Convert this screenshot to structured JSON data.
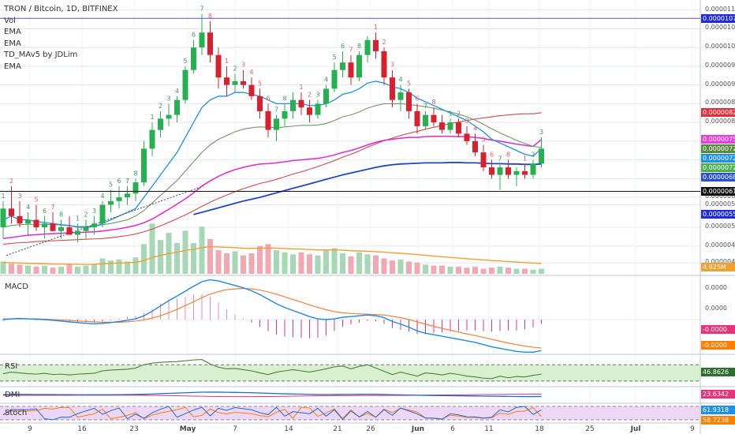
{
  "legend": {
    "title": "TRON / Bitcoin, 1D, BITFINEX",
    "items": [
      "Vol",
      "EMA",
      "EMA",
      "TD_MAv5 by JDLim",
      "EMA"
    ]
  },
  "panes": {
    "macd": "MACD",
    "rsi": "RSI",
    "dmi": "DMI",
    "stoch": "Stoch"
  },
  "price_axis": [
    "0.00001100",
    "0.00001050",
    "0.00001000",
    "0.00000950",
    "0.00000900",
    "0.00000850",
    "0.00000800",
    "0.00000750",
    "0.00000700",
    "0.00000650",
    "0.00000600",
    "0.00000580",
    "0.00000520",
    "0.00000470",
    "0.00000425"
  ],
  "macd_axis": [
    "0.0000",
    "0.0000"
  ],
  "price_tags": [
    {
      "label": "0.00001078",
      "color": "#1f2bd8"
    },
    {
      "label": "0.00000826",
      "color": "#e0303a"
    },
    {
      "label": "0.00000754",
      "color": "#e63fd5"
    },
    {
      "label": "0.00000729",
      "color": "#5a8a3c"
    },
    {
      "label": "0.00000728",
      "color": "#1e90e8"
    },
    {
      "label": "0.00000725",
      "color": "#4caf50"
    },
    {
      "label": "0.00000689",
      "color": "#2a52c8"
    },
    {
      "label": "0.00000616",
      "color": "#111111"
    },
    {
      "label": "0.00000554",
      "color": "#1f2bd8"
    },
    {
      "label": "4.925M",
      "color": "#f0a030"
    }
  ],
  "indicator_tags": [
    {
      "label": "-0.0000",
      "color": "#e8337a"
    },
    {
      "label": "-0.0000",
      "color": "#ff7f00"
    },
    {
      "label": "46.8626",
      "color": "#2e6e2e"
    },
    {
      "label": "23.6342",
      "color": "#e8337a"
    },
    {
      "label": "61.9318",
      "color": "#1e90e8"
    },
    {
      "label": "58.7238",
      "color": "#ff7f00"
    }
  ],
  "x_axis": [
    "9",
    "16",
    "23",
    "May",
    "7",
    "14",
    "21",
    "26",
    "Jun",
    "6",
    "11",
    "18",
    "25",
    "Jul",
    "9"
  ],
  "chart_data": {
    "type": "candlestick",
    "title": "TRON / Bitcoin, 1D, BITFINEX",
    "ylim": [
      4e-06,
      1.11e-05
    ],
    "candles": [
      [
        5.2,
        5.9,
        4.9,
        5.7
      ],
      [
        5.7,
        6.3,
        5.3,
        5.5
      ],
      [
        5.5,
        5.9,
        5.2,
        5.3
      ],
      [
        5.3,
        5.6,
        5.0,
        5.4
      ],
      [
        5.4,
        5.8,
        5.1,
        5.2
      ],
      [
        5.2,
        5.5,
        4.9,
        5.3
      ],
      [
        5.3,
        5.6,
        5.1,
        5.1
      ],
      [
        5.1,
        5.4,
        4.9,
        5.2
      ],
      [
        5.2,
        5.5,
        5.0,
        5.0
      ],
      [
        5.0,
        5.3,
        4.8,
        5.1
      ],
      [
        5.1,
        5.4,
        4.9,
        5.2
      ],
      [
        5.2,
        5.5,
        5.0,
        5.3
      ],
      [
        5.3,
        5.9,
        5.2,
        5.8
      ],
      [
        5.8,
        6.2,
        5.6,
        5.9
      ],
      [
        5.9,
        6.3,
        5.7,
        6.0
      ],
      [
        6.0,
        6.3,
        5.8,
        6.1
      ],
      [
        6.1,
        6.5,
        5.9,
        6.4
      ],
      [
        6.4,
        7.5,
        6.3,
        7.3
      ],
      [
        7.3,
        8.0,
        7.1,
        7.8
      ],
      [
        7.8,
        8.3,
        7.6,
        8.1
      ],
      [
        8.1,
        8.5,
        7.9,
        8.2
      ],
      [
        8.2,
        8.7,
        8.0,
        8.6
      ],
      [
        8.6,
        9.5,
        8.5,
        9.4
      ],
      [
        9.4,
        10.2,
        9.3,
        10.0
      ],
      [
        10.0,
        10.9,
        9.8,
        10.4
      ],
      [
        10.4,
        10.7,
        9.6,
        9.8
      ],
      [
        9.8,
        10.0,
        8.9,
        9.2
      ],
      [
        9.2,
        9.5,
        8.7,
        9.0
      ],
      [
        9.0,
        9.3,
        8.8,
        9.1
      ],
      [
        9.1,
        9.4,
        8.9,
        9.0
      ],
      [
        9.0,
        9.2,
        8.6,
        8.7
      ],
      [
        8.7,
        8.9,
        8.1,
        8.3
      ],
      [
        8.3,
        8.5,
        7.6,
        7.8
      ],
      [
        7.8,
        8.2,
        7.5,
        8.1
      ],
      [
        8.1,
        8.5,
        7.9,
        8.3
      ],
      [
        8.3,
        8.8,
        8.1,
        8.6
      ],
      [
        8.6,
        8.8,
        8.2,
        8.4
      ],
      [
        8.4,
        8.6,
        8.0,
        8.2
      ],
      [
        8.2,
        8.6,
        8.1,
        8.5
      ],
      [
        8.5,
        9.0,
        8.4,
        8.9
      ],
      [
        8.9,
        9.6,
        8.8,
        9.4
      ],
      [
        9.4,
        9.9,
        9.2,
        9.6
      ],
      [
        9.6,
        9.8,
        9.0,
        9.2
      ],
      [
        9.2,
        9.9,
        9.1,
        9.8
      ],
      [
        9.8,
        10.3,
        9.6,
        10.2
      ],
      [
        10.2,
        10.4,
        9.7,
        9.9
      ],
      [
        9.9,
        10.0,
        9.0,
        9.2
      ],
      [
        9.2,
        9.4,
        8.4,
        8.6
      ],
      [
        8.6,
        9.0,
        8.3,
        8.8
      ],
      [
        8.8,
        8.9,
        8.1,
        8.3
      ],
      [
        8.3,
        8.5,
        7.7,
        7.9
      ],
      [
        7.9,
        8.3,
        7.8,
        8.2
      ],
      [
        8.2,
        8.4,
        7.9,
        8.0
      ],
      [
        8.0,
        8.2,
        7.7,
        7.8
      ],
      [
        7.8,
        8.1,
        7.7,
        8.0
      ],
      [
        8.0,
        8.1,
        7.6,
        7.7
      ],
      [
        7.7,
        7.9,
        7.4,
        7.5
      ],
      [
        7.5,
        7.7,
        7.1,
        7.2
      ],
      [
        7.2,
        7.4,
        6.7,
        6.8
      ],
      [
        6.8,
        7.0,
        6.5,
        6.6
      ],
      [
        6.6,
        6.9,
        6.2,
        6.8
      ],
      [
        6.8,
        7.0,
        6.5,
        6.6
      ],
      [
        6.6,
        6.8,
        6.3,
        6.7
      ],
      [
        6.7,
        6.9,
        6.5,
        6.6
      ],
      [
        6.6,
        7.0,
        6.5,
        6.9
      ],
      [
        6.9,
        7.6,
        6.8,
        7.3
      ]
    ],
    "volume": [
      1.2,
      1.0,
      0.9,
      0.8,
      0.7,
      0.8,
      0.6,
      0.7,
      0.9,
      0.7,
      0.8,
      0.9,
      1.5,
      1.3,
      1.4,
      1.2,
      1.6,
      2.9,
      4.9,
      3.3,
      4.0,
      3.0,
      4.2,
      3.0,
      4.6,
      3.4,
      2.3,
      2.0,
      2.2,
      1.8,
      2.0,
      2.7,
      2.9,
      2.3,
      2.1,
      1.9,
      2.1,
      1.9,
      1.8,
      2.3,
      2.5,
      2.0,
      1.7,
      2.1,
      1.9,
      1.8,
      1.5,
      1.3,
      1.4,
      1.2,
      1.1,
      0.9,
      0.8,
      0.8,
      0.7,
      0.7,
      0.6,
      0.7,
      0.5,
      0.6,
      0.7,
      0.6,
      0.5,
      0.5,
      0.4,
      0.5
    ],
    "ema_short": [
      5.4,
      5.5,
      5.4,
      5.4,
      5.35,
      5.33,
      5.3,
      5.27,
      5.25,
      5.2,
      5.2,
      5.22,
      5.3,
      5.4,
      5.5,
      5.6,
      5.7,
      6.0,
      6.3,
      6.6,
      6.9,
      7.2,
      7.6,
      8.0,
      8.4,
      8.6,
      8.7,
      8.7,
      8.8,
      8.8,
      8.75,
      8.7,
      8.6,
      8.5,
      8.5,
      8.5,
      8.5,
      8.45,
      8.45,
      8.5,
      8.6,
      8.75,
      8.8,
      8.9,
      9.05,
      9.1,
      9.05,
      8.95,
      8.9,
      8.8,
      8.65,
      8.55,
      8.45,
      8.35,
      8.25,
      8.15,
      8.05,
      7.9,
      7.75,
      7.55,
      7.45,
      7.35,
      7.25,
      7.15,
      7.1,
      7.3
    ],
    "ema_mid": [
      5.2,
      5.25,
      5.27,
      5.28,
      5.28,
      5.28,
      5.27,
      5.26,
      5.24,
      5.22,
      5.22,
      5.23,
      5.27,
      5.3,
      5.35,
      5.4,
      5.5,
      5.65,
      5.85,
      6.05,
      6.25,
      6.45,
      6.7,
      6.95,
      7.2,
      7.4,
      7.55,
      7.65,
      7.75,
      7.82,
      7.86,
      7.88,
      7.87,
      7.86,
      7.88,
      7.9,
      7.92,
      7.92,
      7.93,
      7.97,
      8.05,
      8.15,
      8.2,
      8.28,
      8.38,
      8.45,
      8.5,
      8.5,
      8.5,
      8.48,
      8.45,
      8.42,
      8.38,
      8.33,
      8.28,
      8.22,
      8.15,
      8.06,
      7.95,
      7.83,
      7.72,
      7.62,
      7.52,
      7.44,
      7.36,
      7.33
    ],
    "ema_magenta": [
      4.9,
      4.93,
      4.96,
      4.99,
      5.0,
      5.02,
      5.03,
      5.04,
      5.05,
      5.06,
      5.07,
      5.08,
      5.1,
      5.13,
      5.16,
      5.2,
      5.25,
      5.32,
      5.42,
      5.55,
      5.68,
      5.82,
      5.96,
      6.12,
      6.3,
      6.44,
      6.56,
      6.66,
      6.74,
      6.8,
      6.85,
      6.89,
      6.9,
      6.92,
      6.95,
      6.98,
      7.0,
      7.02,
      7.04,
      7.08,
      7.13,
      7.2,
      7.25,
      7.32,
      7.4,
      7.47,
      7.52,
      7.55,
      7.58,
      7.6,
      7.6,
      7.62,
      7.63,
      7.63,
      7.63,
      7.62,
      7.62,
      7.6,
      7.57,
      7.53,
      7.5,
      7.46,
      7.42,
      7.39,
      7.36,
      7.54
    ],
    "ema_red": [
      4.75,
      4.77,
      4.79,
      4.8,
      4.82,
      4.83,
      4.84,
      4.85,
      4.86,
      4.87,
      4.88,
      4.89,
      4.9,
      4.92,
      4.95,
      4.98,
      5.02,
      5.08,
      5.15,
      5.24,
      5.33,
      5.43,
      5.53,
      5.64,
      5.76,
      5.87,
      5.97,
      6.06,
      6.15,
      6.23,
      6.3,
      6.37,
      6.42,
      6.48,
      6.55,
      6.62,
      6.68,
      6.75,
      6.82,
      6.9,
      6.98,
      7.07,
      7.15,
      7.24,
      7.34,
      7.43,
      7.51,
      7.58,
      7.65,
      7.71,
      7.76,
      7.82,
      7.87,
      7.92,
      7.97,
      8.01,
      8.05,
      8.09,
      8.12,
      8.15,
      8.18,
      8.2,
      8.22,
      8.23,
      8.23,
      8.26
    ],
    "ema_blue": [
      null,
      null,
      null,
      null,
      null,
      null,
      null,
      null,
      null,
      null,
      null,
      null,
      null,
      null,
      null,
      null,
      null,
      null,
      null,
      null,
      null,
      null,
      null,
      5.54,
      5.6,
      5.66,
      5.72,
      5.78,
      5.84,
      5.9,
      5.95,
      6.0,
      6.06,
      6.12,
      6.18,
      6.24,
      6.3,
      6.36,
      6.42,
      6.48,
      6.54,
      6.6,
      6.65,
      6.7,
      6.75,
      6.8,
      6.84,
      6.87,
      6.89,
      6.9,
      6.91,
      6.92,
      6.92,
      6.92,
      6.93,
      6.93,
      6.92,
      6.92,
      6.91,
      6.9,
      6.9,
      6.89,
      6.89,
      6.88,
      6.88,
      6.89
    ],
    "ema_orange_vol": [
      1.1,
      1.08,
      1.05,
      1.02,
      1.0,
      0.98,
      0.96,
      0.95,
      0.94,
      0.93,
      0.92,
      0.93,
      0.98,
      1.02,
      1.05,
      1.08,
      1.12,
      1.3,
      1.6,
      1.78,
      1.98,
      2.1,
      2.28,
      2.38,
      2.55,
      2.65,
      2.62,
      2.58,
      2.55,
      2.5,
      2.48,
      2.5,
      2.52,
      2.5,
      2.47,
      2.43,
      2.41,
      2.37,
      2.33,
      2.33,
      2.34,
      2.3,
      2.25,
      2.23,
      2.2,
      2.16,
      2.11,
      2.05,
      2.0,
      1.94,
      1.88,
      1.8,
      1.73,
      1.66,
      1.6,
      1.53,
      1.47,
      1.42,
      1.35,
      1.29,
      1.25,
      1.2,
      1.15,
      1.1,
      1.05,
      1.0
    ],
    "macd_line": [
      0.0,
      0.02,
      0.03,
      0.02,
      0.01,
      0.0,
      -0.02,
      -0.04,
      -0.06,
      -0.08,
      -0.1,
      -0.11,
      -0.1,
      -0.08,
      -0.05,
      -0.02,
      0.02,
      0.1,
      0.22,
      0.36,
      0.5,
      0.62,
      0.75,
      0.88,
      1.0,
      1.05,
      1.02,
      0.96,
      0.9,
      0.84,
      0.76,
      0.66,
      0.54,
      0.42,
      0.32,
      0.24,
      0.16,
      0.08,
      0.02,
      0.0,
      0.02,
      0.06,
      0.08,
      0.1,
      0.12,
      0.1,
      0.05,
      -0.05,
      -0.12,
      -0.2,
      -0.3,
      -0.36,
      -0.4,
      -0.44,
      -0.48,
      -0.52,
      -0.56,
      -0.6,
      -0.66,
      -0.72,
      -0.76,
      -0.8,
      -0.84,
      -0.86,
      -0.86,
      -0.82
    ],
    "macd_signal": [
      0.02,
      0.02,
      0.02,
      0.02,
      0.02,
      0.01,
      0.0,
      -0.01,
      -0.02,
      -0.04,
      -0.05,
      -0.06,
      -0.07,
      -0.07,
      -0.07,
      -0.06,
      -0.04,
      -0.01,
      0.04,
      0.1,
      0.18,
      0.27,
      0.37,
      0.47,
      0.58,
      0.67,
      0.74,
      0.79,
      0.81,
      0.82,
      0.81,
      0.78,
      0.73,
      0.67,
      0.6,
      0.53,
      0.46,
      0.39,
      0.32,
      0.26,
      0.21,
      0.18,
      0.16,
      0.15,
      0.14,
      0.13,
      0.12,
      0.09,
      0.05,
      0.0,
      -0.06,
      -0.12,
      -0.18,
      -0.23,
      -0.28,
      -0.33,
      -0.38,
      -0.42,
      -0.47,
      -0.52,
      -0.57,
      -0.62,
      -0.66,
      -0.7,
      -0.73,
      -0.75
    ],
    "rsi": [
      48,
      52,
      50,
      48,
      47,
      49,
      46,
      47,
      45,
      47,
      48,
      49,
      55,
      57,
      58,
      59,
      62,
      70,
      74,
      76,
      77,
      78,
      80,
      82,
      83,
      72,
      64,
      60,
      61,
      58,
      55,
      50,
      46,
      52,
      55,
      58,
      55,
      52,
      56,
      60,
      65,
      67,
      60,
      66,
      70,
      62,
      54,
      46,
      52,
      47,
      42,
      50,
      48,
      45,
      49,
      46,
      42,
      40,
      37,
      36,
      42,
      38,
      41,
      40,
      44,
      47
    ]
  }
}
